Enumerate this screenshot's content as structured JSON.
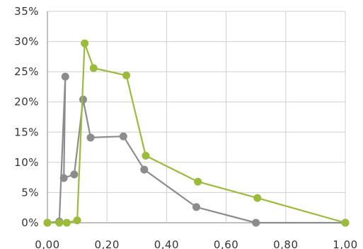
{
  "chart_data": {
    "type": "scatter",
    "title": "",
    "xlabel": "",
    "ylabel": "",
    "xlim": [
      0,
      1.0
    ],
    "ylim": [
      0,
      35
    ],
    "grid": true,
    "x_ticks": [
      0,
      0.2,
      0.4,
      0.6,
      0.8,
      1.0
    ],
    "x_tick_labels": [
      "0,00",
      "0,20",
      "0,40",
      "0,60",
      "0,80",
      "1,00"
    ],
    "y_ticks": [
      0,
      5,
      10,
      15,
      20,
      25,
      30,
      35
    ],
    "y_tick_labels": [
      "0%",
      "5%",
      "10%",
      "15%",
      "20%",
      "25%",
      "30%",
      "35%"
    ],
    "series": [
      {
        "color": "#8c8c8c",
        "points": [
          {
            "x": 0.0,
            "y": 0.0
          },
          {
            "x": 0.04,
            "y": 0.2
          },
          {
            "x": 0.06,
            "y": 24.2
          },
          {
            "x": 0.055,
            "y": 7.4
          },
          {
            "x": 0.09,
            "y": 8.0
          },
          {
            "x": 0.12,
            "y": 20.4
          },
          {
            "x": 0.145,
            "y": 14.1
          },
          {
            "x": 0.255,
            "y": 14.3
          },
          {
            "x": 0.325,
            "y": 8.8
          },
          {
            "x": 0.5,
            "y": 2.6
          },
          {
            "x": 0.7,
            "y": 0.0
          },
          {
            "x": 1.0,
            "y": 0.0
          }
        ]
      },
      {
        "color": "#9bbb3a",
        "points": [
          {
            "x": 0.0,
            "y": 0.0
          },
          {
            "x": 0.04,
            "y": 0.0
          },
          {
            "x": 0.065,
            "y": 0.0
          },
          {
            "x": 0.1,
            "y": 0.4
          },
          {
            "x": 0.125,
            "y": 29.7
          },
          {
            "x": 0.155,
            "y": 25.6
          },
          {
            "x": 0.265,
            "y": 24.4
          },
          {
            "x": 0.33,
            "y": 11.1
          },
          {
            "x": 0.505,
            "y": 6.8
          },
          {
            "x": 0.705,
            "y": 4.1
          },
          {
            "x": 1.0,
            "y": 0.0
          }
        ]
      }
    ]
  }
}
